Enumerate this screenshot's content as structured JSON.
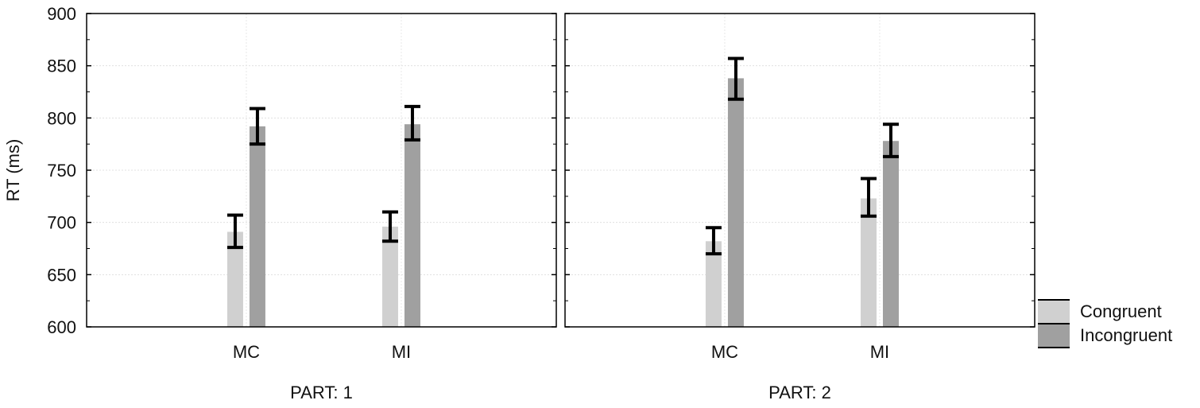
{
  "chart_data": {
    "type": "bar",
    "ylabel": "RT (ms)",
    "ylim": [
      600,
      900
    ],
    "yticks": [
      600,
      650,
      700,
      750,
      800,
      850,
      900
    ],
    "grid": true,
    "legend_position": "right-bottom",
    "error_bars": true,
    "series_colors": [
      "#d0d0d0",
      "#a0a0a0"
    ],
    "legend": [
      {
        "label": "Congruent"
      },
      {
        "label": "Incongruent"
      }
    ],
    "panels": [
      {
        "label": "PART: 1",
        "categories": [
          "MC",
          "MI"
        ],
        "series": [
          {
            "values": [
              691,
              696
            ],
            "errors": [
              [
                676,
                707
              ],
              [
                682,
                710
              ]
            ]
          },
          {
            "values": [
              792,
              794
            ],
            "errors": [
              [
                775,
                809
              ],
              [
                779,
                811
              ]
            ]
          }
        ]
      },
      {
        "label": "PART: 2",
        "categories": [
          "MC",
          "MI"
        ],
        "series": [
          {
            "values": [
              682,
              723
            ],
            "errors": [
              [
                670,
                695
              ],
              [
                706,
                742
              ]
            ]
          },
          {
            "values": [
              838,
              778
            ],
            "errors": [
              [
                818,
                857
              ],
              [
                763,
                794
              ]
            ]
          }
        ]
      }
    ]
  }
}
